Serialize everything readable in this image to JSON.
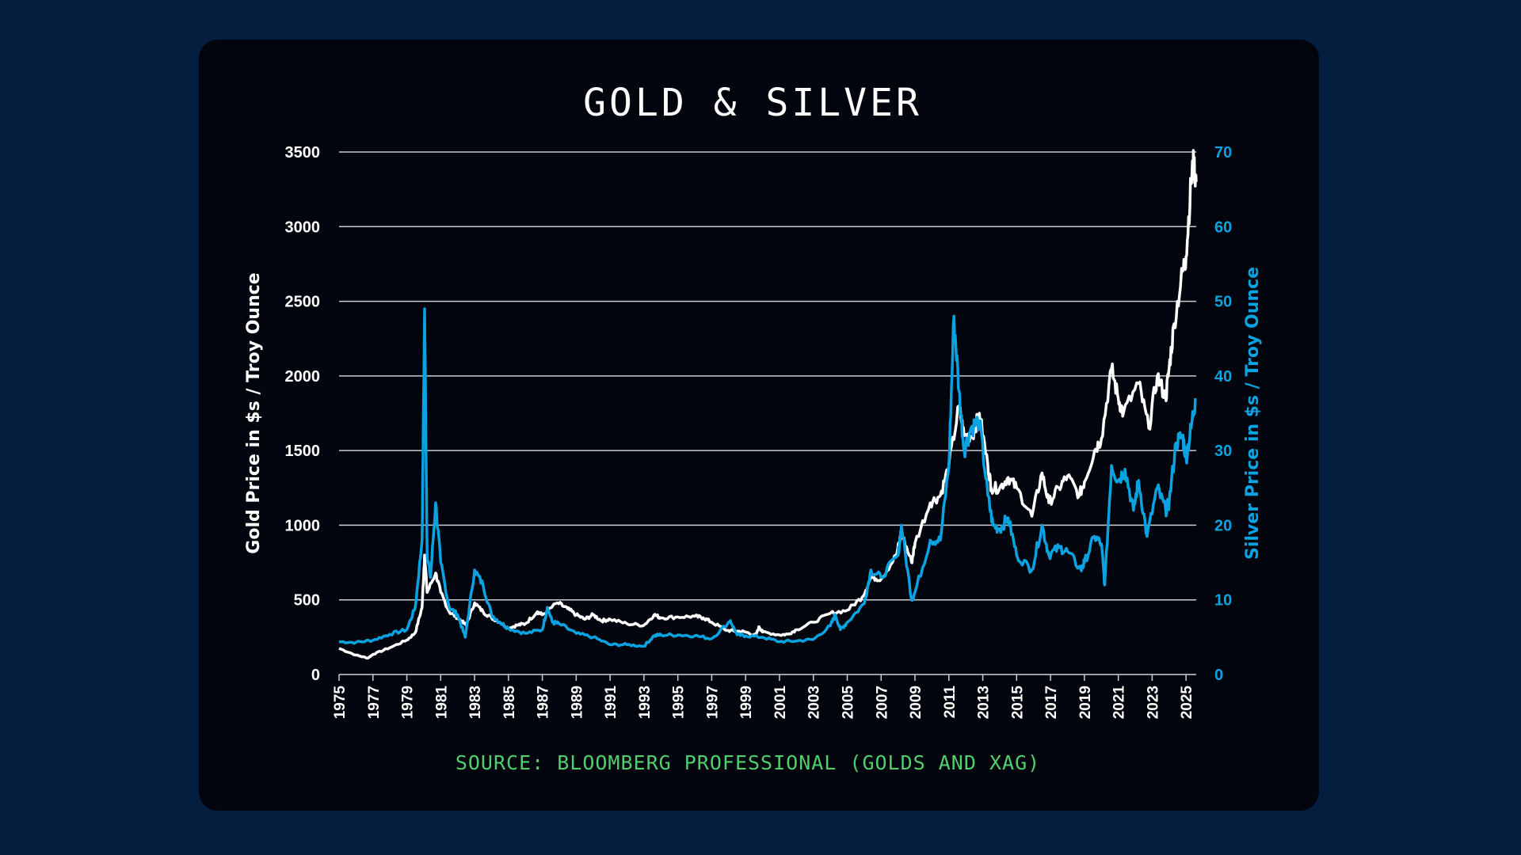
{
  "chart_data": {
    "type": "line",
    "title": "GOLD & SILVER",
    "source": "SOURCE: BLOOMBERG PROFESSIONAL (GOLDS AND XAG)",
    "ylabel": "Gold Price in $s / Troy Ounce",
    "y2label": "Silver Price in $s / Troy Ounce",
    "ylim": [
      0,
      3500
    ],
    "y2lim": [
      0,
      70
    ],
    "xlim": [
      1975,
      2025.6
    ],
    "yticks": [
      "0",
      "500",
      "1000",
      "1500",
      "2000",
      "2500",
      "3000",
      "3500"
    ],
    "y2ticks": [
      "0",
      "10",
      "20",
      "30",
      "40",
      "50",
      "60",
      "70"
    ],
    "xticks": [
      "1975",
      "1977",
      "1979",
      "1981",
      "1983",
      "1985",
      "1987",
      "1989",
      "1991",
      "1993",
      "1995",
      "1997",
      "1999",
      "2001",
      "2003",
      "2005",
      "2007",
      "2009",
      "2011",
      "2013",
      "2015",
      "2017",
      "2019",
      "2021",
      "2023",
      "2025"
    ],
    "grid": true,
    "colors": {
      "gold": "#ffffff",
      "silver": "#0aa3e2",
      "source": "#4fd06c"
    },
    "series": [
      {
        "axis": "left",
        "x": [
          1975,
          1976,
          1976.7,
          1977,
          1978,
          1979,
          1979.5,
          1979.9,
          1980.05,
          1980.2,
          1980.7,
          1981,
          1981.5,
          1982,
          1982.5,
          1983,
          1983.5,
          1984,
          1984.5,
          1985,
          1985.5,
          1986,
          1986.7,
          1987,
          1987.9,
          1988.5,
          1989,
          1989.5,
          1990,
          1990.5,
          1991,
          1992,
          1993,
          1993.6,
          1994,
          1995,
          1996,
          1996.5,
          1997,
          1997.9,
          1998.5,
          1999,
          1999.6,
          1999.8,
          2000,
          2001,
          2001.5,
          2002,
          2003,
          2004,
          2005,
          2005.9,
          2006.4,
          2007,
          2007.9,
          2008.2,
          2008.8,
          2009,
          2009.9,
          2010.5,
          2011,
          2011.6,
          2011.9,
          2012.4,
          2012.8,
          2013.3,
          2013.5,
          2014,
          2014.5,
          2015,
          2015.9,
          2016.5,
          2016.9,
          2017.5,
          2018,
          2018.7,
          2019,
          2019.6,
          2020,
          2020.6,
          2021,
          2021.3,
          2022.2,
          2022.8,
          2023.3,
          2023.8,
          2024,
          2024.3,
          2024.8,
          2025,
          2025.3,
          2025.45,
          2025.6
        ],
        "values": [
          175,
          130,
          110,
          135,
          180,
          230,
          280,
          450,
          800,
          550,
          680,
          550,
          420,
          380,
          330,
          480,
          420,
          380,
          350,
          310,
          330,
          340,
          420,
          400,
          480,
          440,
          400,
          370,
          400,
          360,
          370,
          340,
          330,
          400,
          380,
          385,
          390,
          380,
          350,
          295,
          290,
          285,
          260,
          320,
          285,
          265,
          270,
          300,
          350,
          410,
          430,
          520,
          650,
          640,
          800,
          950,
          750,
          880,
          1150,
          1200,
          1400,
          1800,
          1600,
          1600,
          1750,
          1400,
          1250,
          1250,
          1320,
          1250,
          1060,
          1350,
          1150,
          1250,
          1330,
          1200,
          1290,
          1500,
          1580,
          2050,
          1850,
          1750,
          1950,
          1650,
          2000,
          1850,
          2050,
          2350,
          2700,
          2800,
          3300,
          3430,
          3300
        ]
      },
      {
        "axis": "right",
        "x": [
          1975,
          1976,
          1977,
          1978,
          1979,
          1979.5,
          1979.9,
          1980.05,
          1980.2,
          1980.4,
          1980.7,
          1981,
          1981.5,
          1982,
          1982.45,
          1983,
          1983.5,
          1984,
          1984.5,
          1985,
          1986,
          1987,
          1987.3,
          1987.6,
          1988,
          1989,
          1990,
          1991,
          1992,
          1993,
          1993.6,
          1994,
          1995,
          1996,
          1997,
          1998.1,
          1998.5,
          1999,
          2000,
          2001,
          2002,
          2003,
          2004,
          2004.3,
          2004.6,
          2005,
          2006,
          2006.4,
          2007,
          2008,
          2008.2,
          2008.8,
          2009,
          2009.9,
          2010.5,
          2011,
          2011.3,
          2011.6,
          2011.9,
          2012.3,
          2012.8,
          2013.3,
          2013.6,
          2014,
          2014.5,
          2015,
          2015.9,
          2016.5,
          2016.9,
          2017.5,
          2018,
          2018.8,
          2019,
          2019.6,
          2020,
          2020.2,
          2020.6,
          2021,
          2021.4,
          2021.9,
          2022.2,
          2022.7,
          2023.3,
          2023.8,
          2024,
          2024.4,
          2024.8,
          2025,
          2025.3,
          2025.55
        ],
        "values": [
          4.4,
          4.3,
          4.6,
          5.4,
          6,
          9,
          18,
          49,
          16,
          13,
          23,
          15,
          9,
          8,
          5,
          14,
          12,
          8,
          7,
          6.2,
          5.5,
          6,
          9,
          7,
          6.8,
          5.5,
          5,
          4,
          4,
          3.8,
          5.2,
          5.3,
          5.3,
          5.2,
          4.8,
          7.2,
          5.3,
          5.2,
          5,
          4.4,
          4.5,
          4.7,
          6.5,
          8,
          6,
          7,
          9.5,
          14,
          13,
          16,
          20,
          10,
          11,
          18,
          18,
          28,
          48,
          38,
          30,
          33,
          34,
          24,
          20,
          19.5,
          21,
          16,
          14,
          20,
          16,
          17,
          16.5,
          14,
          15,
          18.5,
          17.5,
          12,
          28,
          26,
          27.5,
          22,
          26,
          18.5,
          25,
          22,
          23,
          31,
          32,
          29,
          33,
          37
        ]
      }
    ]
  }
}
